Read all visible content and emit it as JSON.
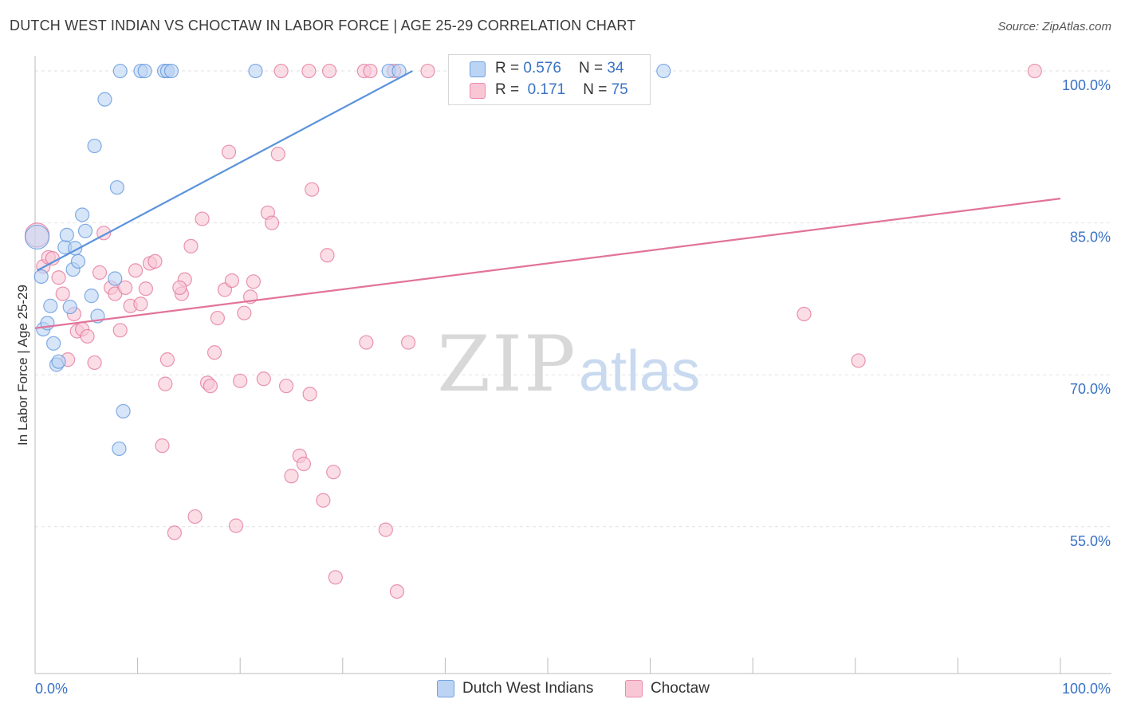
{
  "title": "DUTCH WEST INDIAN VS CHOCTAW IN LABOR FORCE | AGE 25-29 CORRELATION CHART",
  "source": "Source: ZipAtlas.com",
  "watermark": {
    "zip": "ZIP",
    "atlas": "atlas"
  },
  "legend": {
    "rows": [
      {
        "r_label": "R =",
        "r_value": "0.576",
        "n_label": "N =",
        "n_value": "34",
        "fill": "#bcd4f4",
        "stroke": "#6fa0e0"
      },
      {
        "r_label": "R =",
        "r_value": "0.171",
        "n_label": "N =",
        "n_value": "75",
        "fill": "#f9c6d6",
        "stroke": "#e98cab"
      }
    ]
  },
  "chart_data": {
    "type": "scatter",
    "title": "DUTCH WEST INDIAN VS CHOCTAW IN LABOR FORCE | AGE 25-29 CORRELATION CHART",
    "xlabel": "",
    "ylabel": "In Labor Force | Age 25-29",
    "xlim": [
      0,
      100
    ],
    "ylim": [
      40.5,
      101.5
    ],
    "x_tick_labels": [
      "0.0%",
      "100.0%"
    ],
    "y_ticks": [
      100,
      85,
      70,
      55
    ],
    "y_tick_labels": [
      "100.0%",
      "85.0%",
      "70.0%",
      "55.0%"
    ],
    "grid": true,
    "legend_position": "top-center",
    "series": [
      {
        "name": "Dutch West Indians",
        "color": "#5b93dc",
        "fill": "#bcd4f4",
        "trend": {
          "x": [
            0.2,
            36.8
          ],
          "y": [
            80.3,
            100
          ]
        },
        "points": [
          [
            0.2,
            83.6
          ],
          [
            0.6,
            79.7
          ],
          [
            0.8,
            74.5
          ],
          [
            1.2,
            75.1
          ],
          [
            1.5,
            76.8
          ],
          [
            1.8,
            73.1
          ],
          [
            2.1,
            71.0
          ],
          [
            2.3,
            71.3
          ],
          [
            2.9,
            82.6
          ],
          [
            3.1,
            83.8
          ],
          [
            3.4,
            76.7
          ],
          [
            3.7,
            80.4
          ],
          [
            3.9,
            82.5
          ],
          [
            4.2,
            81.2
          ],
          [
            4.6,
            85.8
          ],
          [
            4.9,
            84.2
          ],
          [
            5.5,
            77.8
          ],
          [
            5.8,
            92.6
          ],
          [
            6.1,
            75.8
          ],
          [
            6.8,
            97.2
          ],
          [
            7.8,
            79.5
          ],
          [
            8.0,
            88.5
          ],
          [
            8.6,
            66.4
          ],
          [
            8.2,
            62.7
          ],
          [
            8.3,
            100
          ],
          [
            10.3,
            100
          ],
          [
            10.7,
            100
          ],
          [
            12.6,
            100
          ],
          [
            12.9,
            100
          ],
          [
            13.3,
            100
          ],
          [
            21.5,
            100
          ],
          [
            34.5,
            100
          ],
          [
            35.5,
            100
          ],
          [
            61.3,
            100
          ]
        ]
      },
      {
        "name": "Choctaw",
        "color": "#e2739a",
        "fill": "#f9c6d6",
        "trend": {
          "x": [
            0,
            100
          ],
          "y": [
            74.6,
            87.4
          ]
        },
        "points": [
          [
            0.2,
            83.8
          ],
          [
            0.8,
            80.7
          ],
          [
            1.3,
            81.6
          ],
          [
            1.7,
            81.5
          ],
          [
            2.3,
            79.6
          ],
          [
            2.7,
            78.0
          ],
          [
            3.2,
            71.5
          ],
          [
            3.8,
            76.0
          ],
          [
            4.1,
            74.3
          ],
          [
            4.6,
            74.5
          ],
          [
            5.1,
            73.8
          ],
          [
            5.8,
            71.2
          ],
          [
            6.3,
            80.1
          ],
          [
            6.7,
            84.0
          ],
          [
            7.4,
            78.6
          ],
          [
            7.8,
            78.0
          ],
          [
            8.3,
            74.4
          ],
          [
            8.8,
            78.6
          ],
          [
            9.3,
            76.8
          ],
          [
            9.8,
            80.3
          ],
          [
            10.3,
            77.0
          ],
          [
            10.8,
            78.5
          ],
          [
            11.2,
            81.0
          ],
          [
            11.7,
            81.2
          ],
          [
            12.4,
            63.0
          ],
          [
            12.7,
            69.1
          ],
          [
            12.9,
            71.5
          ],
          [
            13.6,
            54.4
          ],
          [
            14.3,
            78.0
          ],
          [
            14.6,
            79.4
          ],
          [
            15.2,
            82.7
          ],
          [
            15.6,
            56.0
          ],
          [
            16.3,
            85.4
          ],
          [
            16.8,
            69.2
          ],
          [
            17.1,
            68.9
          ],
          [
            17.5,
            72.2
          ],
          [
            17.8,
            75.6
          ],
          [
            18.5,
            78.4
          ],
          [
            18.9,
            92.0
          ],
          [
            19.2,
            79.3
          ],
          [
            19.6,
            55.1
          ],
          [
            20.0,
            69.4
          ],
          [
            20.4,
            76.1
          ],
          [
            21.0,
            77.7
          ],
          [
            21.3,
            79.2
          ],
          [
            22.3,
            69.6
          ],
          [
            22.7,
            86.0
          ],
          [
            23.1,
            85.0
          ],
          [
            23.7,
            91.8
          ],
          [
            24.5,
            68.9
          ],
          [
            25.0,
            60.0
          ],
          [
            25.8,
            62.0
          ],
          [
            26.2,
            61.2
          ],
          [
            26.8,
            68.1
          ],
          [
            27.0,
            88.3
          ],
          [
            28.1,
            57.6
          ],
          [
            28.5,
            81.8
          ],
          [
            29.1,
            60.4
          ],
          [
            29.3,
            50.0
          ],
          [
            32.3,
            73.2
          ],
          [
            34.2,
            54.7
          ],
          [
            35.3,
            48.6
          ],
          [
            36.4,
            73.2
          ],
          [
            24.0,
            100
          ],
          [
            26.7,
            100
          ],
          [
            28.7,
            100
          ],
          [
            32.1,
            100
          ],
          [
            32.7,
            100
          ],
          [
            35.0,
            100
          ],
          [
            38.3,
            100
          ],
          [
            45.3,
            100
          ],
          [
            75.0,
            76.0
          ],
          [
            80.3,
            71.4
          ],
          [
            97.5,
            100
          ],
          [
            14.1,
            78.6
          ]
        ]
      }
    ]
  }
}
